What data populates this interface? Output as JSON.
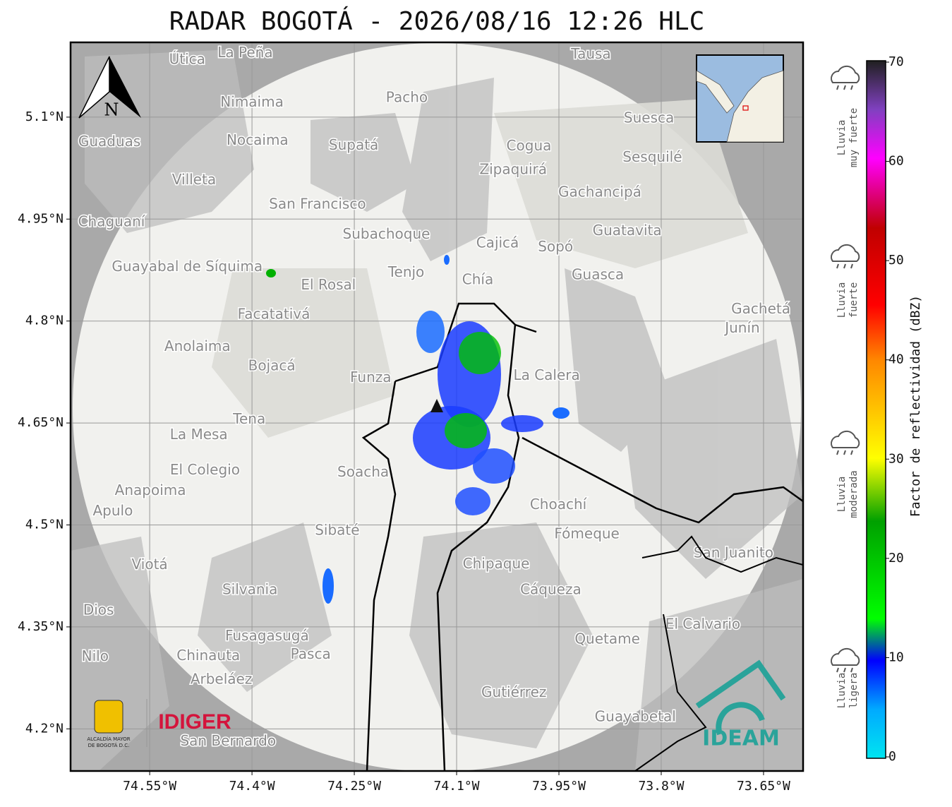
{
  "title": "RADAR BOGOTÁ - 2026/08/16 12:26 HLC",
  "map": {
    "xlim": [
      -74.666,
      -73.592
    ],
    "ylim": [
      4.138,
      5.21
    ],
    "xticks": [
      {
        "value": -74.55,
        "label": "74.55°W"
      },
      {
        "value": -74.4,
        "label": "74.4°W"
      },
      {
        "value": -74.25,
        "label": "74.25°W"
      },
      {
        "value": -74.1,
        "label": "74.1°W"
      },
      {
        "value": -73.95,
        "label": "73.95°W"
      },
      {
        "value": -73.8,
        "label": "73.8°W"
      },
      {
        "value": -73.65,
        "label": "73.65°W"
      }
    ],
    "yticks": [
      {
        "value": 5.1,
        "label": "5.1°N"
      },
      {
        "value": 4.95,
        "label": "4.95°N"
      },
      {
        "value": 4.8,
        "label": "4.8°N"
      },
      {
        "value": 4.65,
        "label": "4.65°N"
      },
      {
        "value": 4.5,
        "label": "4.5°N"
      },
      {
        "value": 4.35,
        "label": "4.35°N"
      },
      {
        "value": 4.2,
        "label": "4.2°N"
      }
    ],
    "places": [
      {
        "name": "La Peña",
        "lon": -74.41,
        "lat": 5.194
      },
      {
        "name": "Útica",
        "lon": -74.495,
        "lat": 5.184
      },
      {
        "name": "Tausa",
        "lon": -73.903,
        "lat": 5.192
      },
      {
        "name": "Pacho",
        "lon": -74.173,
        "lat": 5.128
      },
      {
        "name": "Nimaima",
        "lon": -74.4,
        "lat": 5.121
      },
      {
        "name": "Suesca",
        "lon": -73.818,
        "lat": 5.098
      },
      {
        "name": "Nocaima",
        "lon": -74.392,
        "lat": 5.065
      },
      {
        "name": "Supatá",
        "lon": -74.251,
        "lat": 5.058
      },
      {
        "name": "Guaduas",
        "lon": -74.609,
        "lat": 5.063
      },
      {
        "name": "Cogua",
        "lon": -73.994,
        "lat": 5.057
      },
      {
        "name": "Sesquilé",
        "lon": -73.813,
        "lat": 5.04
      },
      {
        "name": "Zipaquirá",
        "lon": -74.017,
        "lat": 5.022
      },
      {
        "name": "Villeta",
        "lon": -74.485,
        "lat": 5.007
      },
      {
        "name": "Gachancipá",
        "lon": -73.89,
        "lat": 4.989
      },
      {
        "name": "San Francisco",
        "lon": -74.304,
        "lat": 4.971
      },
      {
        "name": "Chaguaní",
        "lon": -74.606,
        "lat": 4.945
      },
      {
        "name": "Guatavita",
        "lon": -73.85,
        "lat": 4.932
      },
      {
        "name": "Subachoque",
        "lon": -74.203,
        "lat": 4.927
      },
      {
        "name": "Cajicá",
        "lon": -74.04,
        "lat": 4.914
      },
      {
        "name": "Sopó",
        "lon": -73.955,
        "lat": 4.908
      },
      {
        "name": "Guayabal de Síquima",
        "lon": -74.495,
        "lat": 4.879
      },
      {
        "name": "Tenjo",
        "lon": -74.174,
        "lat": 4.871
      },
      {
        "name": "Guasca",
        "lon": -73.893,
        "lat": 4.867
      },
      {
        "name": "Chía",
        "lon": -74.069,
        "lat": 4.86
      },
      {
        "name": "El Rosal",
        "lon": -74.288,
        "lat": 4.852
      },
      {
        "name": "Facatativá",
        "lon": -74.368,
        "lat": 4.809
      },
      {
        "name": "Gachetá",
        "lon": -73.654,
        "lat": 4.817
      },
      {
        "name": "Junín",
        "lon": -73.681,
        "lat": 4.789
      },
      {
        "name": "Anolaima",
        "lon": -74.48,
        "lat": 4.762
      },
      {
        "name": "Bojacá",
        "lon": -74.371,
        "lat": 4.733
      },
      {
        "name": "Funza",
        "lon": -74.226,
        "lat": 4.716
      },
      {
        "name": "La Calera",
        "lon": -73.968,
        "lat": 4.719
      },
      {
        "name": "Tena",
        "lon": -74.404,
        "lat": 4.655
      },
      {
        "name": "La Mesa",
        "lon": -74.478,
        "lat": 4.632
      },
      {
        "name": "Soacha",
        "lon": -74.237,
        "lat": 4.577
      },
      {
        "name": "El Colegio",
        "lon": -74.469,
        "lat": 4.58
      },
      {
        "name": "Anapoima",
        "lon": -74.549,
        "lat": 4.55
      },
      {
        "name": "Apulo",
        "lon": -74.604,
        "lat": 4.52
      },
      {
        "name": "Choachí",
        "lon": -73.951,
        "lat": 4.529
      },
      {
        "name": "Sibaté",
        "lon": -74.275,
        "lat": 4.491
      },
      {
        "name": "Fómeque",
        "lon": -73.909,
        "lat": 4.486
      },
      {
        "name": "San Juanito",
        "lon": -73.694,
        "lat": 4.458
      },
      {
        "name": "Viotá",
        "lon": -74.55,
        "lat": 4.441
      },
      {
        "name": "Chipaque",
        "lon": -74.042,
        "lat": 4.442
      },
      {
        "name": "Silvania",
        "lon": -74.403,
        "lat": 4.404
      },
      {
        "name": "Cáqueza",
        "lon": -73.962,
        "lat": 4.404
      },
      {
        "name": "El Calvario",
        "lon": -73.739,
        "lat": 4.353
      },
      {
        "name": "Fusagasugá",
        "lon": -74.378,
        "lat": 4.336
      },
      {
        "name": "Quetame",
        "lon": -73.879,
        "lat": 4.331
      },
      {
        "name": "Chinauta",
        "lon": -74.464,
        "lat": 4.307
      },
      {
        "name": "Pasca",
        "lon": -74.314,
        "lat": 4.309
      },
      {
        "name": "Arbeláez",
        "lon": -74.445,
        "lat": 4.272
      },
      {
        "name": "Gutiérrez",
        "lon": -74.016,
        "lat": 4.253
      },
      {
        "name": "Guayabetal",
        "lon": -73.838,
        "lat": 4.217
      },
      {
        "name": "San Bernardo",
        "lon": -74.435,
        "lat": 4.181
      },
      {
        "name": "Nilo",
        "lon": -74.63,
        "lat": 4.306
      },
      {
        "name": "Dios",
        "lon": -74.625,
        "lat": 4.374
      }
    ],
    "north": "N"
  },
  "colorbar": {
    "label": "Factor de reflectividad (dBZ)",
    "lim": [
      0,
      70
    ],
    "ticks": [
      0,
      10,
      20,
      30,
      40,
      50,
      60,
      70
    ],
    "rain_classes": [
      [
        "Lluvia",
        "muy fuerte"
      ],
      [
        "Lluvia",
        "fuerte"
      ],
      [
        "Lluvia",
        "moderada"
      ],
      [
        "Lluvia",
        "ligera"
      ]
    ]
  },
  "logos": {
    "alcaldia": [
      "ALCALDÍA MAYOR",
      "DE BOGOTÁ D.C."
    ],
    "idiger": "IDIGER",
    "ideam": "IDEAM"
  }
}
